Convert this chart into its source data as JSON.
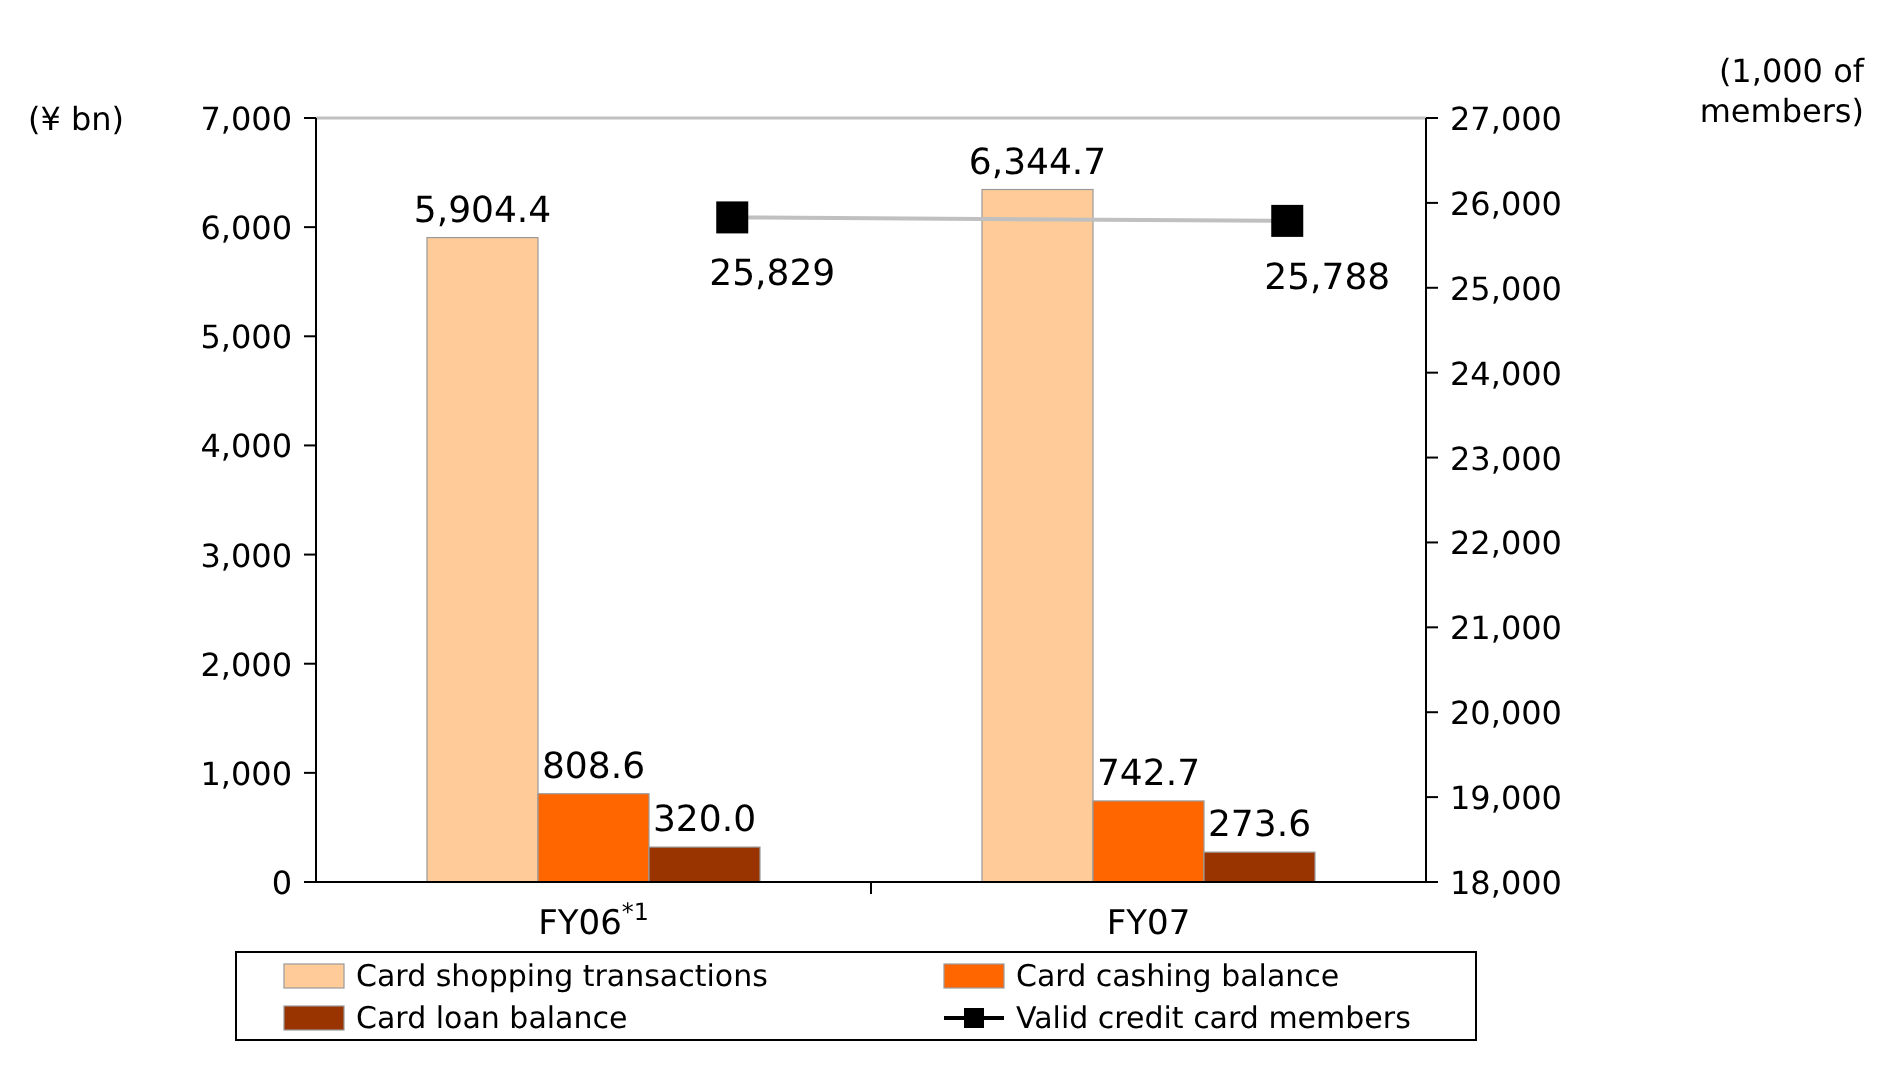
{
  "chart_data": {
    "type": "bar",
    "ylabel": "(¥ bn)",
    "y2label": "(1,000 of members)",
    "categories": [
      "FY06$^{*1}$",
      "FY07"
    ],
    "series": [
      {
        "name": "Card shopping transactions",
        "color": "#ffcc99",
        "values": [
          5904.4,
          6344.7
        ],
        "value_labels": [
          "5,904.4",
          "6,344.7"
        ]
      },
      {
        "name": "Card cashing balance",
        "color": "#ff6600",
        "values": [
          808.6,
          742.7
        ],
        "value_labels": [
          "808.6",
          "742.7"
        ]
      },
      {
        "name": "Card loan balance",
        "color": "#993300",
        "values": [
          320.0,
          273.6
        ],
        "value_labels": [
          "320.0",
          "273.6"
        ]
      },
      {
        "name": "Valid credit card members",
        "type": "line",
        "axis": "y2",
        "color": "#c0c0c0",
        "marker": "square",
        "values": [
          25829,
          25788
        ],
        "value_labels": [
          "25,829",
          "25,788"
        ]
      }
    ],
    "ylim": [
      0,
      7000
    ],
    "yticks": [
      {
        "value": 0,
        "label": "0"
      },
      {
        "value": 1000,
        "label": "1,000"
      },
      {
        "value": 2000,
        "label": "2,000"
      },
      {
        "value": 3000,
        "label": "3,000"
      },
      {
        "value": 4000,
        "label": "4,000"
      },
      {
        "value": 5000,
        "label": "5,000"
      },
      {
        "value": 6000,
        "label": "6,000"
      },
      {
        "value": 7000,
        "label": "7,000"
      }
    ],
    "y2lim": [
      18000,
      27000
    ],
    "y2ticks": [
      {
        "value": 18000,
        "label": "18,000"
      },
      {
        "value": 19000,
        "label": "19,000"
      },
      {
        "value": 20000,
        "label": "20,000"
      },
      {
        "value": 21000,
        "label": "21,000"
      },
      {
        "value": 22000,
        "label": "22,000"
      },
      {
        "value": 23000,
        "label": "23,000"
      },
      {
        "value": 24000,
        "label": "24,000"
      },
      {
        "value": 25000,
        "label": "25,000"
      },
      {
        "value": 26000,
        "label": "26,000"
      },
      {
        "value": 27000,
        "label": "27,000"
      }
    ],
    "legend": "bottom",
    "grid": false
  }
}
